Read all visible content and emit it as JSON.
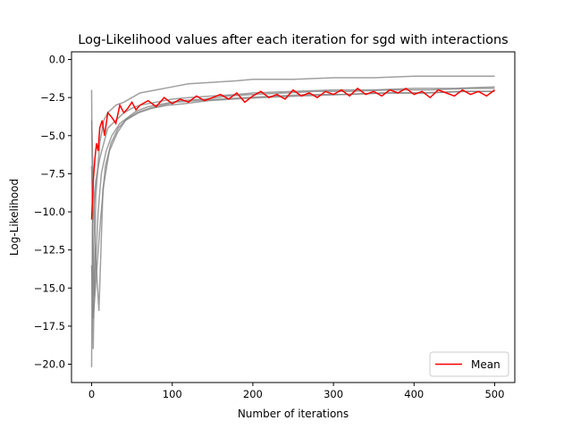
{
  "chart_data": {
    "type": "line",
    "title": "Log-Likelihood values after each iteration for sgd with interactions",
    "xlabel": "Number of iterations",
    "ylabel": "Log-Likelihood",
    "xlim": [
      -25,
      525
    ],
    "ylim": [
      -21.2,
      0.5
    ],
    "xticks": [
      0,
      100,
      200,
      300,
      400,
      500
    ],
    "xtick_labels": [
      "0",
      "100",
      "200",
      "300",
      "400",
      "500"
    ],
    "yticks": [
      0.0,
      -2.5,
      -5.0,
      -7.5,
      -10.0,
      -12.5,
      -15.0,
      -17.5,
      -20.0
    ],
    "ytick_labels": [
      "0.0",
      "−2.5",
      "−5.0",
      "−7.5",
      "−10.0",
      "−12.5",
      "−15.0",
      "−17.5",
      "−20.0"
    ],
    "grid": false,
    "legend": {
      "position": "lower-right",
      "entries": [
        "Mean"
      ]
    },
    "colors": {
      "runs": "#808080",
      "mean": "#ff0000"
    },
    "series": [
      {
        "name": "Mean",
        "x": [
          0,
          2,
          4,
          6,
          8,
          10,
          13,
          16,
          20,
          25,
          30,
          35,
          40,
          45,
          50,
          55,
          60,
          70,
          80,
          90,
          100,
          110,
          120,
          130,
          140,
          150,
          160,
          170,
          180,
          190,
          200,
          210,
          220,
          230,
          240,
          250,
          260,
          270,
          280,
          290,
          300,
          310,
          320,
          330,
          340,
          350,
          360,
          370,
          380,
          390,
          400,
          410,
          420,
          430,
          440,
          450,
          460,
          470,
          480,
          490,
          500
        ],
        "y": [
          -10.5,
          -8.0,
          -6.5,
          -5.5,
          -6.0,
          -4.5,
          -4.0,
          -5.0,
          -3.5,
          -3.8,
          -4.2,
          -3.0,
          -3.5,
          -3.2,
          -2.8,
          -3.3,
          -3.0,
          -2.7,
          -3.1,
          -2.5,
          -2.9,
          -2.6,
          -2.8,
          -2.4,
          -2.7,
          -2.5,
          -2.3,
          -2.6,
          -2.2,
          -2.8,
          -2.4,
          -2.1,
          -2.5,
          -2.3,
          -2.6,
          -2.0,
          -2.4,
          -2.2,
          -2.5,
          -2.1,
          -2.3,
          -2.0,
          -2.4,
          -1.9,
          -2.3,
          -2.1,
          -2.4,
          -2.0,
          -2.2,
          -1.9,
          -2.3,
          -2.1,
          -2.5,
          -2.0,
          -2.2,
          -2.4,
          -2.0,
          -2.3,
          -2.1,
          -2.4,
          -2.0
        ]
      }
    ],
    "runs": [
      {
        "x": [
          0,
          2,
          5,
          10,
          15,
          20,
          30,
          40,
          50,
          60,
          80,
          100,
          120,
          150,
          180,
          200,
          250,
          300,
          350,
          400,
          450,
          500
        ],
        "y": [
          -13.5,
          -19.0,
          -9.0,
          -5.5,
          -4.0,
          -3.5,
          -3.0,
          -2.8,
          -2.5,
          -2.2,
          -2.0,
          -1.8,
          -1.6,
          -1.5,
          -1.4,
          -1.3,
          -1.3,
          -1.2,
          -1.2,
          -1.1,
          -1.1,
          -1.1
        ]
      },
      {
        "x": [
          0,
          1,
          5,
          10,
          15,
          20,
          30,
          40,
          50,
          60,
          80,
          100,
          120,
          150,
          180,
          200,
          250,
          300,
          350,
          400,
          450,
          500
        ],
        "y": [
          -20.2,
          -11.0,
          -8.0,
          -6.5,
          -5.5,
          -4.5,
          -4.0,
          -3.5,
          -3.2,
          -3.0,
          -2.8,
          -2.6,
          -2.5,
          -2.4,
          -2.3,
          -2.2,
          -2.1,
          -2.0,
          -2.0,
          -1.9,
          -1.9,
          -1.8
        ]
      },
      {
        "x": [
          0,
          3,
          8,
          12,
          18,
          25,
          35,
          45,
          55,
          70,
          90,
          110,
          140,
          170,
          200,
          240,
          280,
          320,
          370,
          420,
          470,
          500
        ],
        "y": [
          -7.0,
          -15.5,
          -10.0,
          -7.5,
          -6.0,
          -5.0,
          -4.2,
          -3.8,
          -3.4,
          -3.1,
          -2.9,
          -2.7,
          -2.6,
          -2.4,
          -2.3,
          -2.2,
          -2.1,
          -2.1,
          -2.0,
          -2.0,
          -1.9,
          -1.9
        ]
      },
      {
        "x": [
          0,
          4,
          9,
          14,
          22,
          32,
          42,
          58,
          75,
          95,
          115,
          145,
          175,
          210,
          260,
          310,
          360,
          410,
          460,
          500
        ],
        "y": [
          -4.0,
          -12.0,
          -16.5,
          -8.5,
          -6.0,
          -4.8,
          -4.0,
          -3.5,
          -3.2,
          -3.0,
          -2.9,
          -2.7,
          -2.6,
          -2.5,
          -2.4,
          -2.3,
          -2.2,
          -2.2,
          -2.1,
          -2.1
        ]
      },
      {
        "x": [
          0,
          2,
          6,
          11,
          17,
          24,
          33,
          44,
          56,
          72,
          88,
          105,
          130,
          160,
          190,
          230,
          270,
          315,
          365,
          415,
          465,
          500
        ],
        "y": [
          -2.0,
          -17.0,
          -14.0,
          -10.5,
          -7.0,
          -5.5,
          -4.5,
          -3.9,
          -3.5,
          -3.2,
          -3.0,
          -2.8,
          -2.7,
          -2.6,
          -2.5,
          -2.4,
          -2.3,
          -2.3,
          -2.2,
          -2.2,
          -2.1,
          -2.1
        ]
      }
    ]
  }
}
